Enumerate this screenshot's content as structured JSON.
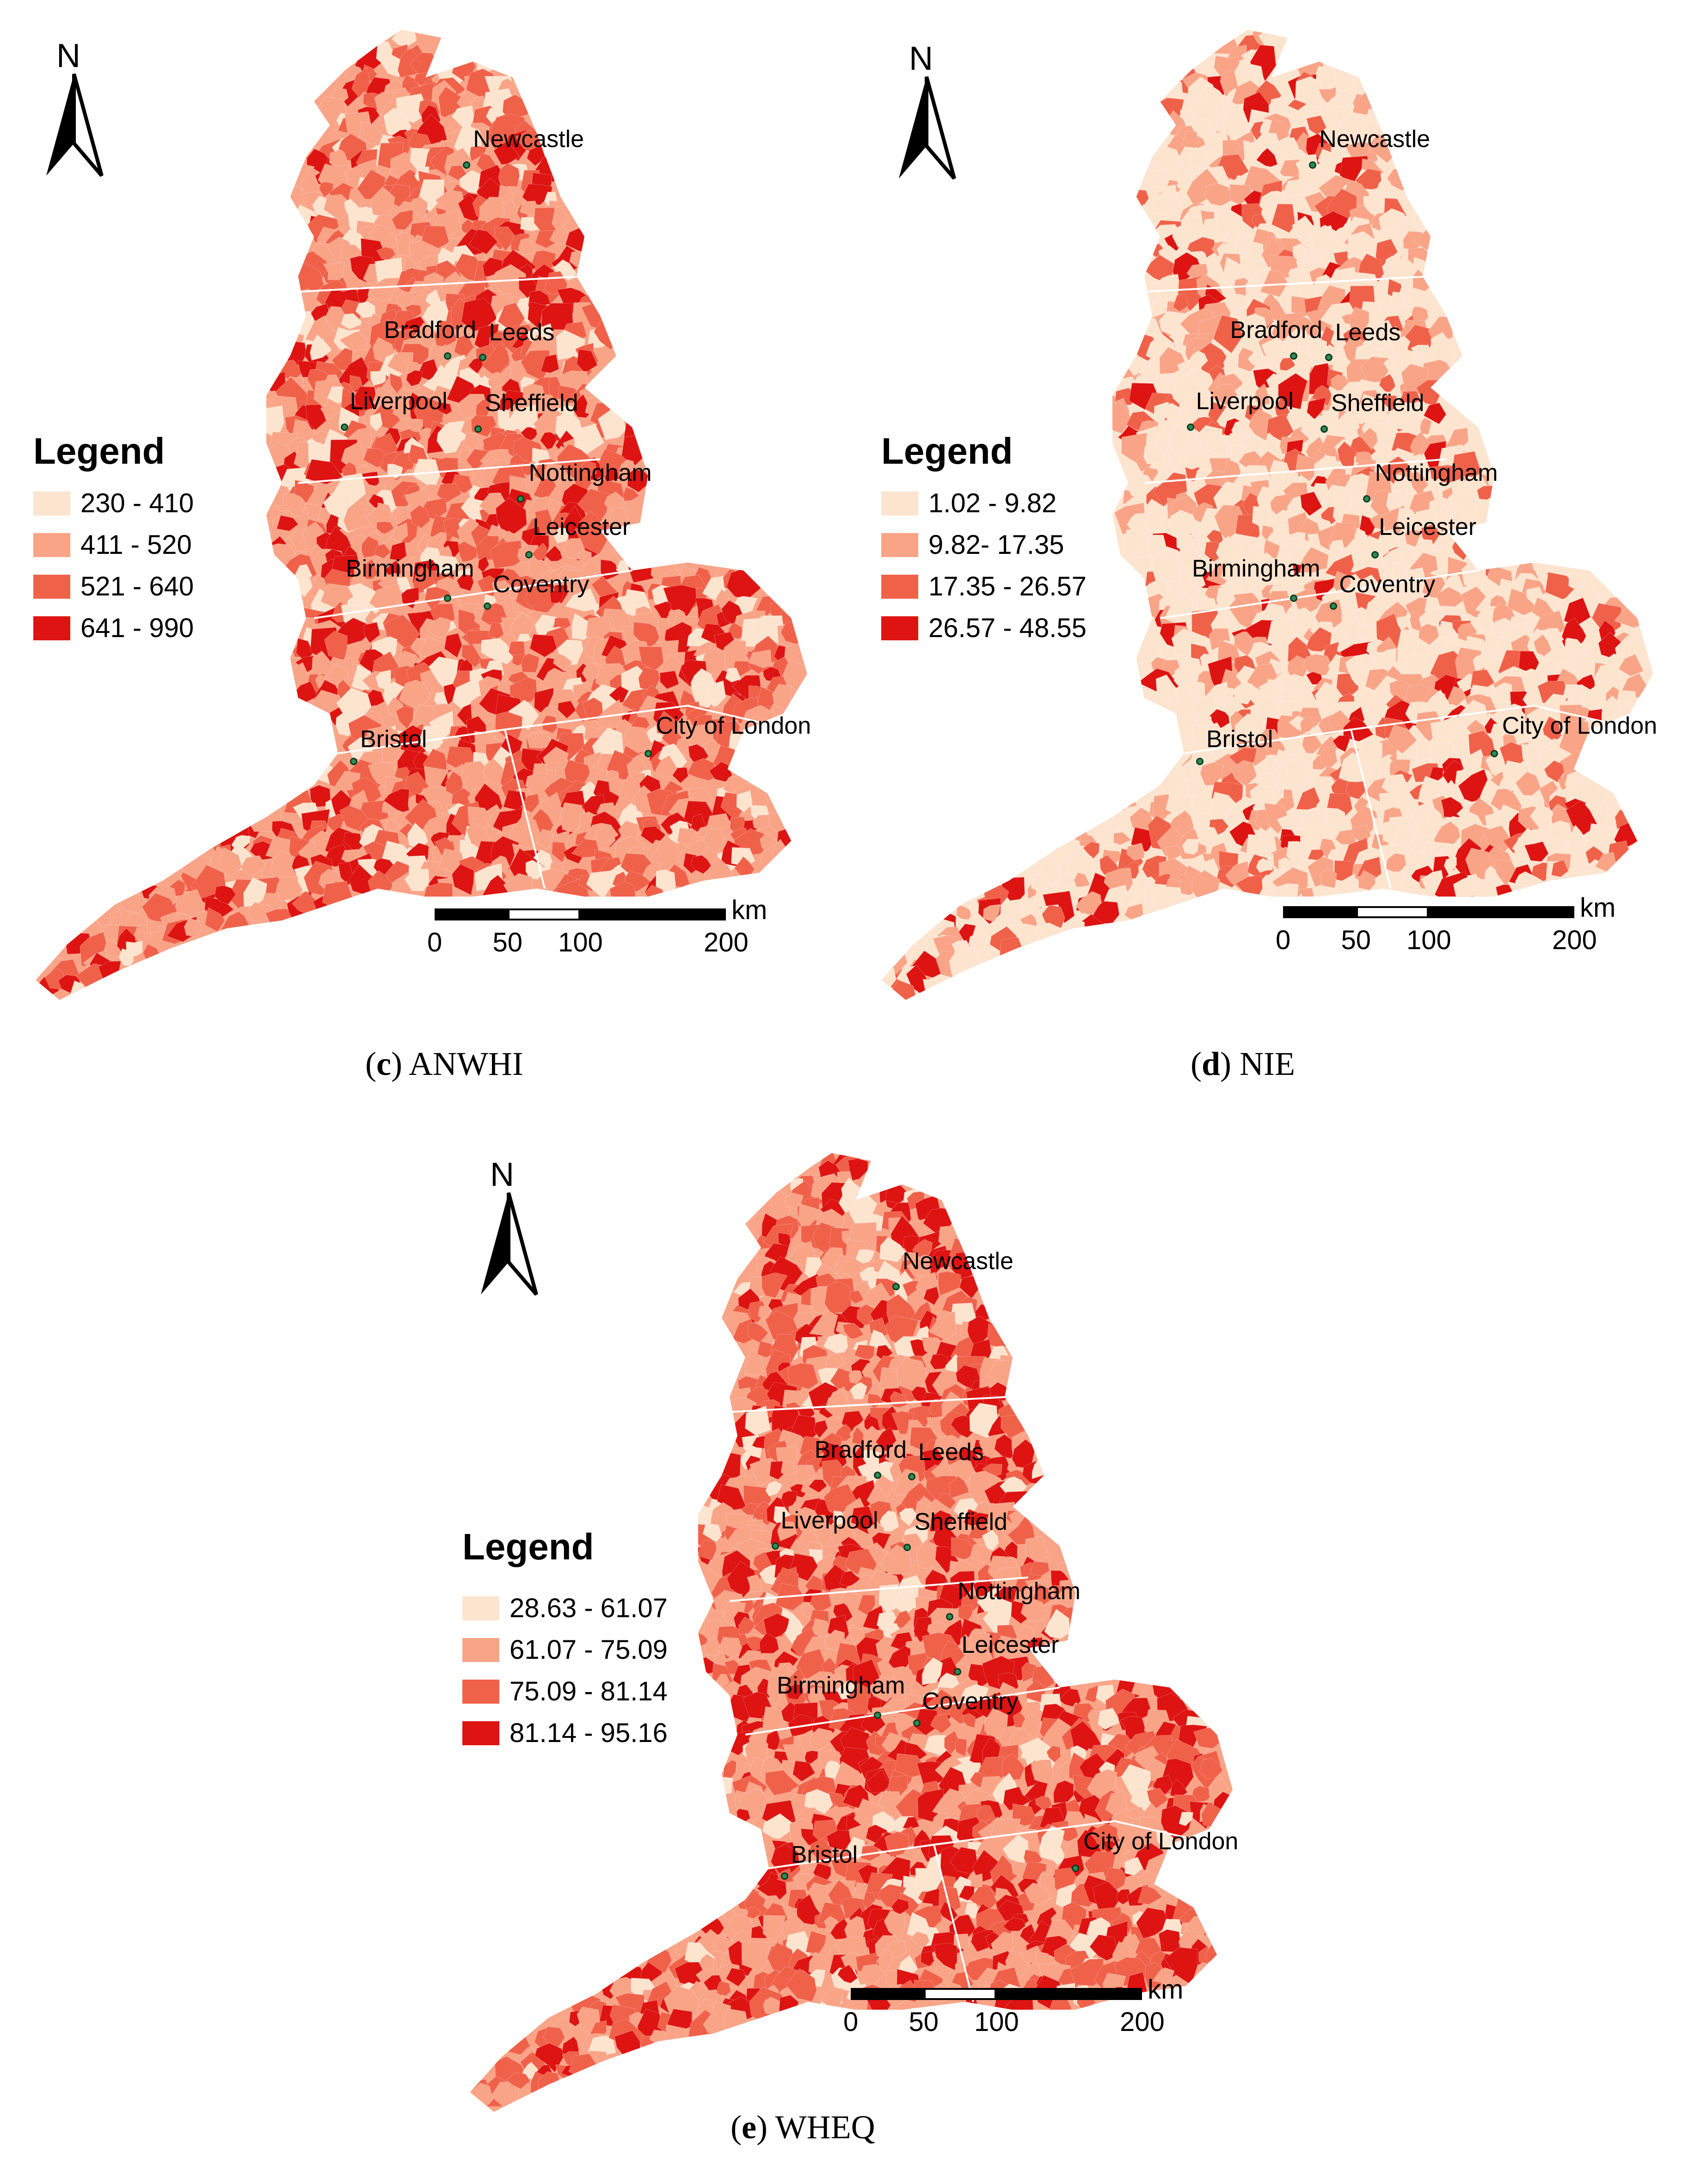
{
  "north_label": "N",
  "legend_title": "Legend",
  "scale": {
    "unit": "km",
    "ticks": [
      "0",
      "50",
      "100",
      "200"
    ]
  },
  "colors": [
    "#fde4cf",
    "#f9a487",
    "#f0614a",
    "#dd1412"
  ],
  "cities": [
    "Newcastle",
    "Bradford",
    "Leeds",
    "Liverpool",
    "Sheffield",
    "Nottingham",
    "Leicester",
    "Birmingham",
    "Coventry",
    "Bristol",
    "City of London"
  ],
  "panels": [
    {
      "id": "c",
      "caption_letter": "c",
      "caption_text": "ANWHI",
      "legend": [
        "230 - 410",
        "411 - 520",
        "521 - 640",
        "641 - 990"
      ]
    },
    {
      "id": "d",
      "caption_letter": "d",
      "caption_text": "NIE",
      "legend": [
        "1.02 - 9.82",
        "9.82- 17.35",
        "17.35 - 26.57",
        "26.57 - 48.55"
      ]
    },
    {
      "id": "e",
      "caption_letter": "e",
      "caption_text": "WHEQ",
      "legend": [
        "28.63 - 61.07",
        "61.07 - 75.09",
        "75.09 - 81.14",
        "81.14 - 95.16"
      ]
    }
  ]
}
